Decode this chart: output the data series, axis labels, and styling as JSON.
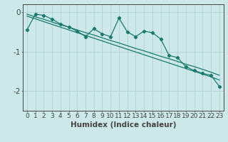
{
  "x": [
    0,
    1,
    2,
    3,
    4,
    5,
    6,
    7,
    8,
    9,
    10,
    11,
    12,
    13,
    14,
    15,
    16,
    17,
    18,
    19,
    20,
    21,
    22,
    23
  ],
  "zigzag": [
    -0.45,
    -0.05,
    -0.08,
    -0.18,
    -0.3,
    -0.38,
    -0.48,
    -0.62,
    -0.42,
    -0.55,
    -0.62,
    -0.15,
    -0.5,
    -0.62,
    -0.48,
    -0.52,
    -0.68,
    -1.1,
    -1.15,
    -1.38,
    -1.48,
    -1.55,
    -1.6,
    -1.88
  ],
  "reg1": [
    -0.05,
    -0.12,
    -0.18,
    -0.25,
    -0.32,
    -0.38,
    -0.45,
    -0.52,
    -0.58,
    -0.65,
    -0.72,
    -0.78,
    -0.85,
    -0.92,
    -0.98,
    -1.05,
    -1.12,
    -1.18,
    -1.25,
    -1.32,
    -1.38,
    -1.45,
    -1.52,
    -1.6
  ],
  "reg2": [
    -0.1,
    -0.17,
    -0.24,
    -0.31,
    -0.38,
    -0.45,
    -0.52,
    -0.59,
    -0.66,
    -0.73,
    -0.8,
    -0.87,
    -0.94,
    -1.01,
    -1.08,
    -1.15,
    -1.22,
    -1.29,
    -1.36,
    -1.43,
    -1.5,
    -1.57,
    -1.64,
    -1.72
  ],
  "bg_color": "#cce8e8",
  "line_color": "#1a7a6e",
  "grid_color": "#aacece",
  "axis_color": "#444444",
  "xlabel": "Humidex (Indice chaleur)",
  "ylim": [
    -2.5,
    0.2
  ],
  "xlim": [
    -0.5,
    23.5
  ],
  "yticks": [
    0,
    -1,
    -2
  ],
  "xticks": [
    0,
    1,
    2,
    3,
    4,
    5,
    6,
    7,
    8,
    9,
    10,
    11,
    12,
    13,
    14,
    15,
    16,
    17,
    18,
    19,
    20,
    21,
    22,
    23
  ],
  "tick_fontsize": 6.5,
  "label_fontsize": 7.5
}
